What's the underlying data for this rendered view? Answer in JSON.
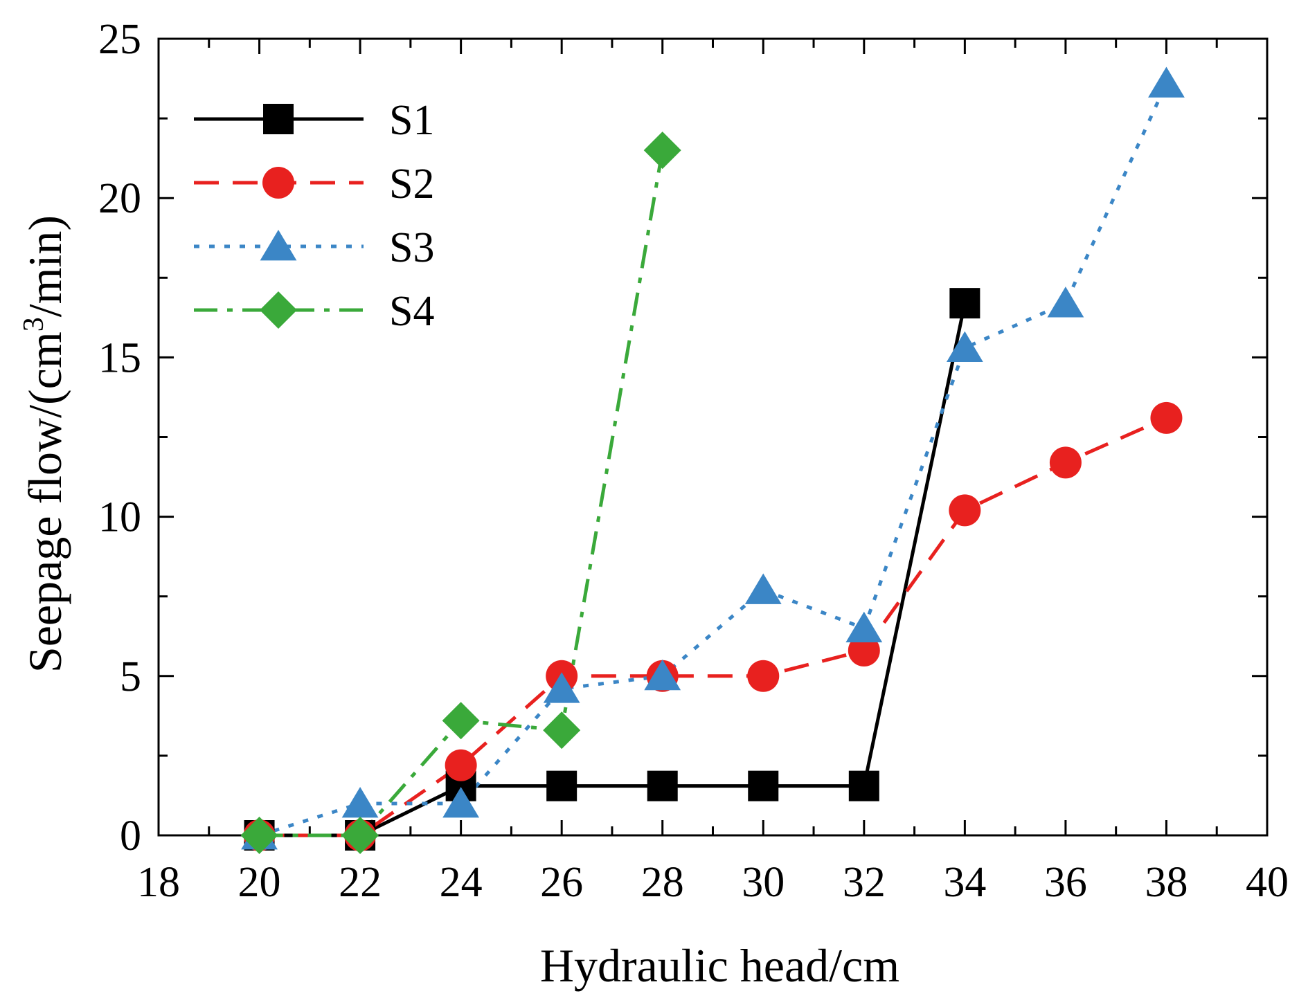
{
  "chart_data": {
    "type": "line",
    "title": "",
    "xlabel": "Hydraulic head/cm",
    "ylabel_prefix": "Seepage flow/(cm",
    "ylabel_sup": "3",
    "ylabel_suffix": "/min)",
    "xlim": [
      18,
      40
    ],
    "ylim": [
      0,
      25
    ],
    "xticks": [
      "18",
      "20",
      "22",
      "24",
      "26",
      "28",
      "30",
      "32",
      "34",
      "36",
      "38",
      "40"
    ],
    "yticks": [
      "0",
      "5",
      "10",
      "15",
      "20",
      "25"
    ],
    "legend_position": "top-left",
    "series": [
      {
        "name": "S1",
        "color": "#000000",
        "line_style": "solid",
        "marker": "square",
        "x": [
          20,
          22,
          24,
          26,
          28,
          30,
          32,
          34
        ],
        "y": [
          0,
          0,
          1.55,
          1.55,
          1.55,
          1.55,
          1.55,
          16.7
        ]
      },
      {
        "name": "S2",
        "color": "#e8211f",
        "line_style": "dashed",
        "marker": "circle",
        "x": [
          20,
          22,
          24,
          26,
          28,
          30,
          32,
          34,
          36,
          38
        ],
        "y": [
          0,
          0,
          2.2,
          5.0,
          5.0,
          5.0,
          5.8,
          10.2,
          11.7,
          13.1
        ]
      },
      {
        "name": "S3",
        "color": "#3b86c6",
        "line_style": "dotted",
        "marker": "triangle",
        "x": [
          20,
          22,
          24,
          26,
          28,
          30,
          32,
          34,
          36,
          38
        ],
        "y": [
          0,
          1.0,
          1.0,
          4.6,
          5.0,
          7.7,
          6.5,
          15.3,
          16.7,
          23.6
        ]
      },
      {
        "name": "S4",
        "color": "#3aa93a",
        "line_style": "dashdot",
        "marker": "diamond",
        "x": [
          20,
          22,
          24,
          26,
          28
        ],
        "y": [
          0,
          0,
          3.6,
          3.3,
          21.5
        ]
      }
    ]
  }
}
